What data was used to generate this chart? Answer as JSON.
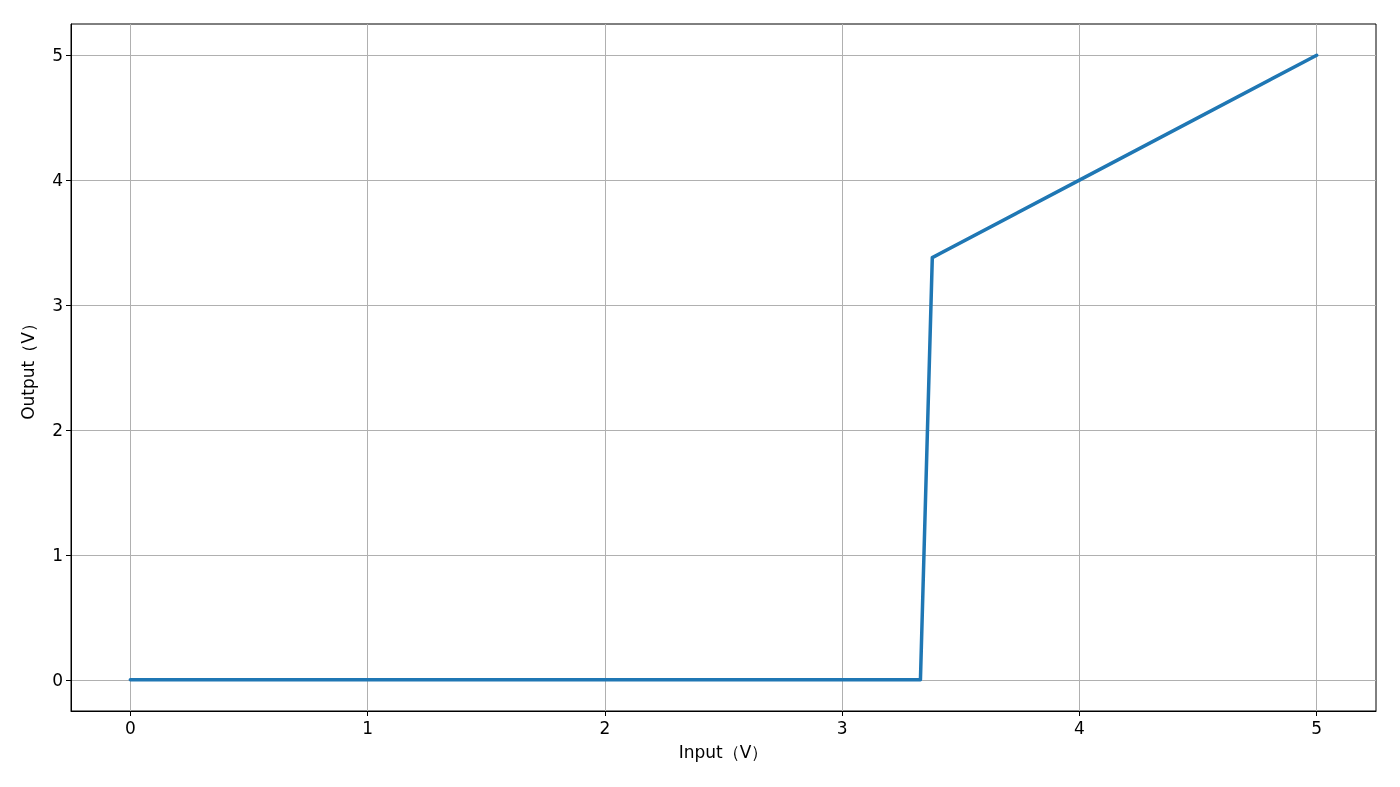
{
  "chart_data": {
    "type": "line",
    "xlabel": "Input（V）",
    "ylabel": "Output（V）",
    "x": [
      0,
      3.33,
      3.38,
      4,
      5
    ],
    "series": [
      {
        "color": "#1f77b4",
        "values": [
          0,
          0,
          3.38,
          4,
          5
        ]
      }
    ],
    "xlim": [
      -0.25,
      5.25
    ],
    "ylim": [
      -0.25,
      5.25
    ],
    "xticks": [
      0,
      1,
      2,
      3,
      4,
      5
    ],
    "yticks": [
      0,
      1,
      2,
      3,
      4,
      5
    ],
    "grid": true,
    "marker": "none",
    "line_style": "solid"
  }
}
